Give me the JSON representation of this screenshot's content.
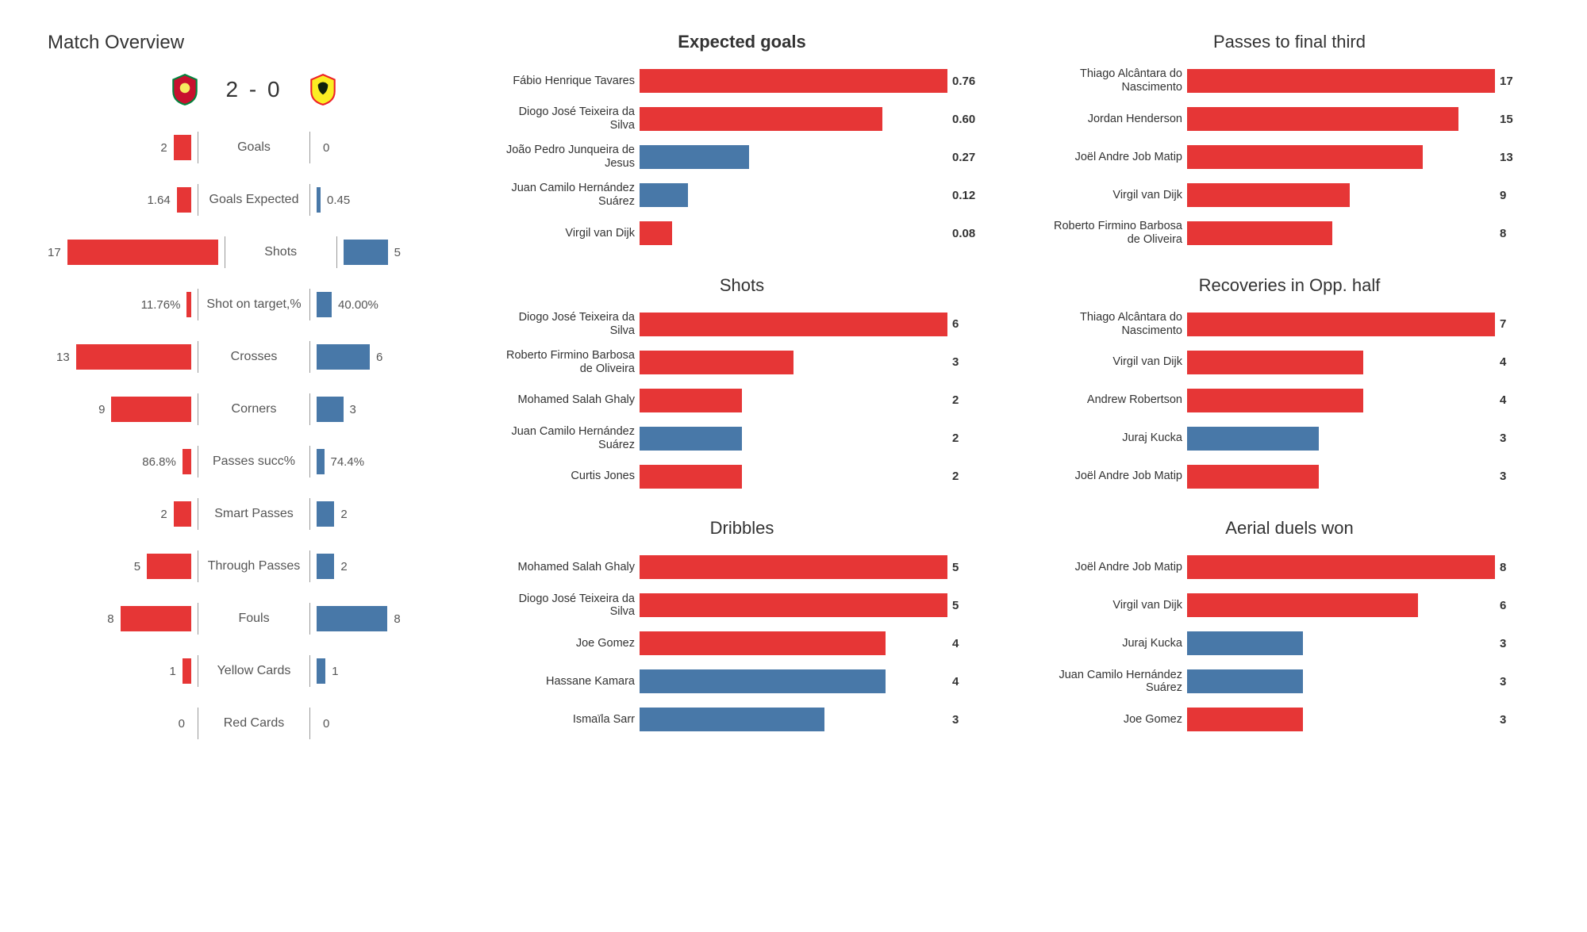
{
  "colors": {
    "team1": "#e63636",
    "team2": "#4878a8",
    "text": "#333333",
    "label": "#555555",
    "divider": "#999999",
    "background": "#ffffff"
  },
  "overview": {
    "title": "Match Overview",
    "score_display": "2 - 0",
    "max_scale": 17,
    "rows": [
      {
        "label": "Goals",
        "left_val": "2",
        "right_val": "0",
        "left_num": 2,
        "right_num": 0
      },
      {
        "label": "Goals Expected",
        "left_val": "1.64",
        "right_val": "0.45",
        "left_num": 1.64,
        "right_num": 0.45
      },
      {
        "label": "Shots",
        "left_val": "17",
        "right_val": "5",
        "left_num": 17,
        "right_num": 5
      },
      {
        "label": "Shot on target,%",
        "left_val": "11.76%",
        "right_val": "40.00%",
        "left_num": 0.5,
        "right_num": 1.7
      },
      {
        "label": "Crosses",
        "left_val": "13",
        "right_val": "6",
        "left_num": 13,
        "right_num": 6
      },
      {
        "label": "Corners",
        "left_val": "9",
        "right_val": "3",
        "left_num": 9,
        "right_num": 3
      },
      {
        "label": "Passes succ%",
        "left_val": "86.8%",
        "right_val": "74.4%",
        "left_num": 1.0,
        "right_num": 0.85
      },
      {
        "label": "Smart Passes",
        "left_val": "2",
        "right_val": "2",
        "left_num": 2,
        "right_num": 2
      },
      {
        "label": "Through Passes",
        "left_val": "5",
        "right_val": "2",
        "left_num": 5,
        "right_num": 2
      },
      {
        "label": "Fouls",
        "left_val": "8",
        "right_val": "8",
        "left_num": 8,
        "right_num": 8
      },
      {
        "label": "Yellow Cards",
        "left_val": "1",
        "right_val": "1",
        "left_num": 1,
        "right_num": 1
      },
      {
        "label": "Red Cards",
        "left_val": "0",
        "right_val": "0",
        "left_num": 0,
        "right_num": 0
      }
    ]
  },
  "stat_blocks": [
    {
      "title": "Expected goals",
      "bold_title": true,
      "max": 0.76,
      "rows": [
        {
          "name": "Fábio Henrique Tavares",
          "val": "0.76",
          "num": 0.76,
          "team": 1
        },
        {
          "name": "Diogo José Teixeira da Silva",
          "val": "0.60",
          "num": 0.6,
          "team": 1
        },
        {
          "name": "João Pedro Junqueira de Jesus",
          "val": "0.27",
          "num": 0.27,
          "team": 2
        },
        {
          "name": "Juan Camilo Hernández Suárez",
          "val": "0.12",
          "num": 0.12,
          "team": 2
        },
        {
          "name": "Virgil van Dijk",
          "val": "0.08",
          "num": 0.08,
          "team": 1
        }
      ]
    },
    {
      "title": "Passes to final third",
      "bold_title": false,
      "max": 17,
      "rows": [
        {
          "name": "Thiago Alcântara do Nascimento",
          "val": "17",
          "num": 17,
          "team": 1
        },
        {
          "name": "Jordan Henderson",
          "val": "15",
          "num": 15,
          "team": 1
        },
        {
          "name": "Joël Andre Job Matip",
          "val": "13",
          "num": 13,
          "team": 1
        },
        {
          "name": "Virgil van Dijk",
          "val": "9",
          "num": 9,
          "team": 1
        },
        {
          "name": "Roberto Firmino Barbosa de Oliveira",
          "val": "8",
          "num": 8,
          "team": 1
        }
      ]
    },
    {
      "title": "Shots",
      "bold_title": false,
      "max": 6,
      "rows": [
        {
          "name": "Diogo José Teixeira da Silva",
          "val": "6",
          "num": 6,
          "team": 1
        },
        {
          "name": "Roberto Firmino Barbosa de Oliveira",
          "val": "3",
          "num": 3,
          "team": 1
        },
        {
          "name": "Mohamed  Salah Ghaly",
          "val": "2",
          "num": 2,
          "team": 1
        },
        {
          "name": "Juan Camilo Hernández Suárez",
          "val": "2",
          "num": 2,
          "team": 2
        },
        {
          "name": "Curtis Jones",
          "val": "2",
          "num": 2,
          "team": 1
        }
      ]
    },
    {
      "title": "Recoveries in Opp. half",
      "bold_title": false,
      "max": 7,
      "rows": [
        {
          "name": "Thiago Alcântara do Nascimento",
          "val": "7",
          "num": 7,
          "team": 1
        },
        {
          "name": "Virgil van Dijk",
          "val": "4",
          "num": 4,
          "team": 1
        },
        {
          "name": "Andrew Robertson",
          "val": "4",
          "num": 4,
          "team": 1
        },
        {
          "name": "Juraj Kucka",
          "val": "3",
          "num": 3,
          "team": 2
        },
        {
          "name": "Joël Andre Job Matip",
          "val": "3",
          "num": 3,
          "team": 1
        }
      ]
    },
    {
      "title": "Dribbles",
      "bold_title": false,
      "max": 5,
      "rows": [
        {
          "name": "Mohamed  Salah Ghaly",
          "val": "5",
          "num": 5,
          "team": 1
        },
        {
          "name": "Diogo José Teixeira da Silva",
          "val": "5",
          "num": 5,
          "team": 1
        },
        {
          "name": "Joe Gomez",
          "val": "4",
          "num": 4,
          "team": 1
        },
        {
          "name": "Hassane Kamara",
          "val": "4",
          "num": 4,
          "team": 2
        },
        {
          "name": "Ismaïla Sarr",
          "val": "3",
          "num": 3,
          "team": 2
        }
      ]
    },
    {
      "title": "Aerial duels won",
      "bold_title": false,
      "max": 8,
      "rows": [
        {
          "name": "Joël Andre Job Matip",
          "val": "8",
          "num": 8,
          "team": 1
        },
        {
          "name": "Virgil van Dijk",
          "val": "6",
          "num": 6,
          "team": 1
        },
        {
          "name": "Juraj Kucka",
          "val": "3",
          "num": 3,
          "team": 2
        },
        {
          "name": "Juan Camilo Hernández Suárez",
          "val": "3",
          "num": 3,
          "team": 2
        },
        {
          "name": "Joe Gomez",
          "val": "3",
          "num": 3,
          "team": 1
        }
      ]
    }
  ]
}
